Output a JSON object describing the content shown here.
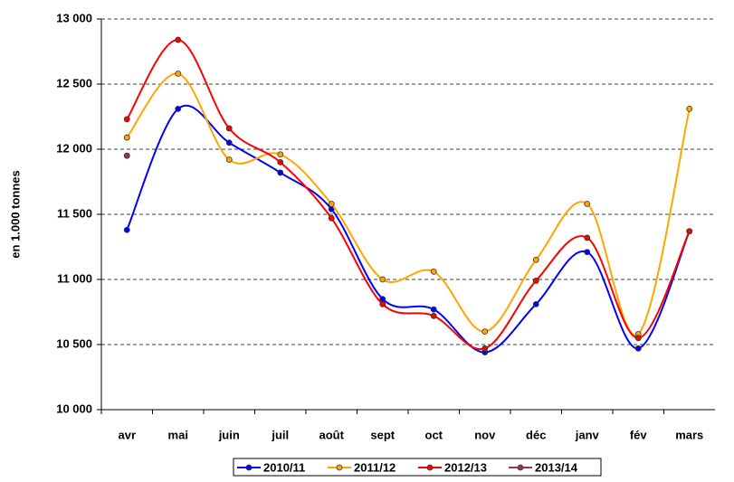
{
  "chart_data": {
    "type": "line",
    "y_label": "en 1.000 tonnes",
    "categories": [
      "avr",
      "mai",
      "juin",
      "juil",
      "août",
      "sept",
      "oct",
      "nov",
      "déc",
      "janv",
      "fév",
      "mars"
    ],
    "series": [
      {
        "name": "2010/11",
        "color": "#0000ff",
        "values": [
          11380,
          12310,
          12050,
          11820,
          11540,
          10850,
          10770,
          10440,
          10810,
          11210,
          10470,
          11370
        ]
      },
      {
        "name": "2011/12",
        "color": "#ffa500",
        "values": [
          12090,
          12580,
          11920,
          11960,
          11580,
          11000,
          11060,
          10600,
          11150,
          11580,
          10580,
          12310
        ]
      },
      {
        "name": "2012/13",
        "color": "#ff0000",
        "values": [
          12230,
          12840,
          12160,
          11900,
          11470,
          10810,
          10720,
          10470,
          10990,
          11320,
          10550,
          11370
        ]
      },
      {
        "name": "2013/14",
        "color": "#993366",
        "values": [
          11950,
          null,
          null,
          null,
          null,
          null,
          null,
          null,
          null,
          null,
          null,
          null
        ]
      }
    ],
    "ylim": [
      10000,
      13000
    ],
    "yticks": [
      {
        "value": 10000,
        "label": "10 000"
      },
      {
        "value": 10500,
        "label": "10 500"
      },
      {
        "value": 11000,
        "label": "11 000"
      },
      {
        "value": 11500,
        "label": "11 500"
      },
      {
        "value": 12000,
        "label": "12 000"
      },
      {
        "value": 12500,
        "label": "12 500"
      },
      {
        "value": 13000,
        "label": "13 000"
      }
    ],
    "grid": true
  }
}
